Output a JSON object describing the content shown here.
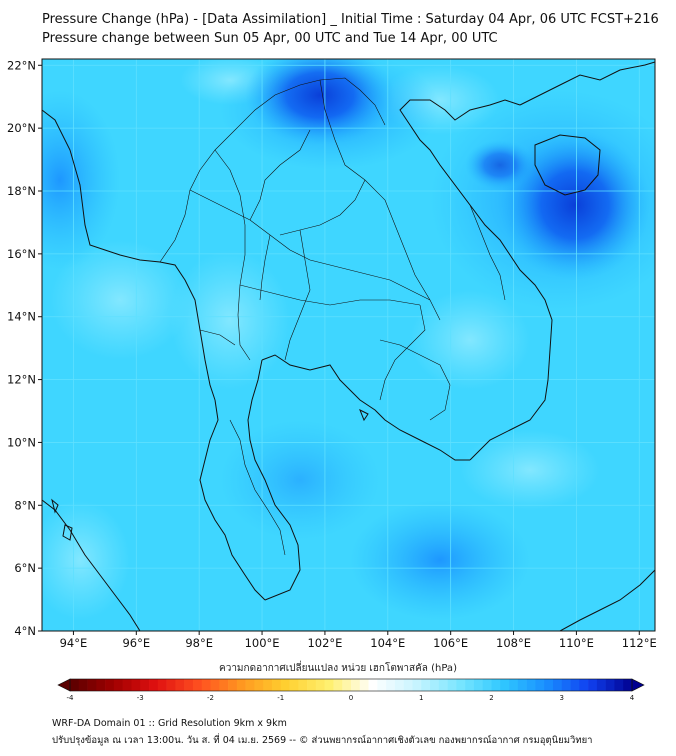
{
  "header": {
    "title_line1": "Pressure Change (hPa) - [Data Assimilation] _ Initial Time : Saturday 04 Apr, 06 UTC FCST+216",
    "title_line2": "Pressure change between Sun 05 Apr, 00 UTC and Tue 14 Apr, 00 UTC"
  },
  "map": {
    "lat_ticks": [
      "22°N",
      "20°N",
      "18°N",
      "16°N",
      "14°N",
      "12°N",
      "10°N",
      "8°N",
      "6°N",
      "4°N"
    ],
    "lon_ticks": [
      "94°E",
      "96°E",
      "98°E",
      "100°E",
      "102°E",
      "104°E",
      "106°E",
      "108°E",
      "110°E",
      "112°E"
    ],
    "lat_values": [
      22,
      20,
      18,
      16,
      14,
      12,
      10,
      8,
      6,
      4
    ],
    "lon_values": [
      94,
      96,
      98,
      100,
      102,
      104,
      106,
      108,
      110,
      112
    ],
    "extent": {
      "lon_min": 93,
      "lon_max": 112.5,
      "lat_min": 4,
      "lat_max": 22.2
    },
    "field_colors": {
      "base": "#3fd6ff",
      "light": "#7ae6ff",
      "mid": "#1fb4ff",
      "deep": "#0f5ef0",
      "darkest": "#0a3fd8"
    },
    "coastline_color": "#111111",
    "grid_color": "#5fe0ff"
  },
  "colorbar": {
    "label": "ความกดอากาศเปลี่ยนแปลง หน่วย เฮกโตพาสคัล (hPa)",
    "tick_labels": [
      "-4",
      "-3",
      "-2",
      "-1",
      "0",
      "1",
      "2",
      "3",
      "4"
    ],
    "tick_values": [
      -4,
      -3,
      -2,
      -1,
      0,
      1,
      2,
      3,
      4
    ],
    "range": [
      -4,
      4
    ],
    "colors": [
      "#5a0000",
      "#a00000",
      "#e01010",
      "#ff5020",
      "#ff9a20",
      "#ffd030",
      "#fff070",
      "#ffffff",
      "#c8f4ff",
      "#7ae6ff",
      "#30c8ff",
      "#1a90ff",
      "#1040f0",
      "#000090"
    ]
  },
  "footer": {
    "line1": "WRF-DA Domain 01 :: Grid Resolution 9km x 9km",
    "line2": "ปรับปรุงข้อมูล ณ เวลา 13:00น. วัน ส. ที่ 04 เม.ย. 2569 -- © ส่วนพยากรณ์อากาศเชิงตัวเลข กองพยากรณ์อากาศ กรมอุตุนิยมวิทยา"
  }
}
